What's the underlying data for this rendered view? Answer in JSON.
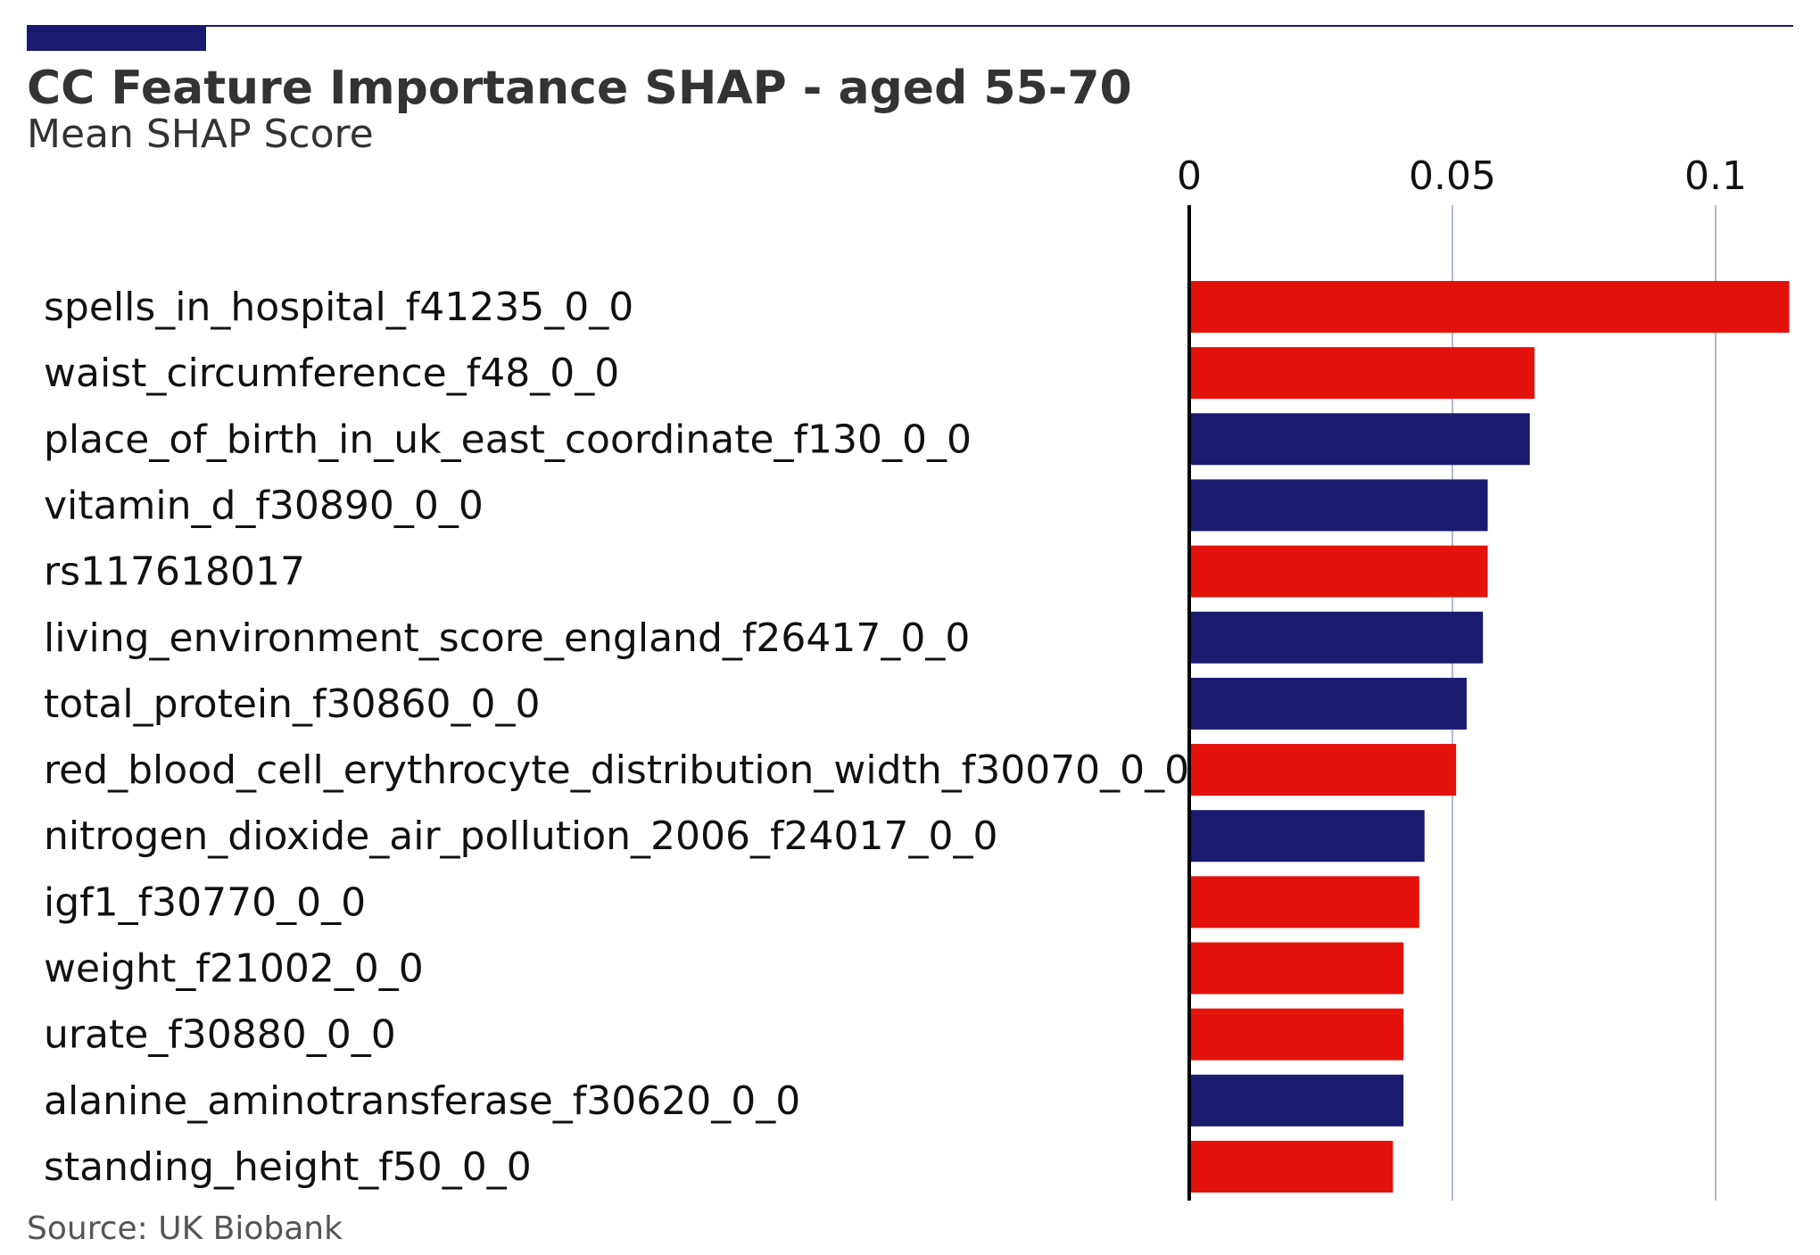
{
  "header": {
    "title": "CC Feature Importance SHAP - aged 55-70",
    "subtitle": "Mean SHAP Score"
  },
  "footer": {
    "source": "Source: UK Biobank"
  },
  "colors": {
    "accent": "#1a1a6e",
    "positive": "#e3120b",
    "negative": "#1a1a6e",
    "grid": "#b0bccb"
  },
  "chart_data": {
    "type": "bar",
    "orientation": "horizontal",
    "x_ticks": [
      "0",
      "0.05",
      "0.1"
    ],
    "x_tick_values": [
      0,
      0.05,
      0.1
    ],
    "xlim": [
      0,
      0.115
    ],
    "grid": true,
    "categories": [
      "spells_in_hospital_f41235_0_0",
      "waist_circumference_f48_0_0",
      "place_of_birth_in_uk_east_coordinate_f130_0_0",
      "vitamin_d_f30890_0_0",
      "rs117618017",
      "living_environment_score_england_f26417_0_0",
      "total_protein_f30860_0_0",
      "red_blood_cell_erythrocyte_distribution_width_f30070_0_0",
      "nitrogen_dioxide_air_pollution_2006_f24017_0_0",
      "igf1_f30770_0_0",
      "weight_f21002_0_0",
      "urate_f30880_0_0",
      "alanine_aminotransferase_f30620_0_0",
      "standing_height_f50_0_0"
    ],
    "values": [
      0.114,
      0.0656,
      0.0647,
      0.0567,
      0.0567,
      0.0558,
      0.0527,
      0.0507,
      0.0447,
      0.0437,
      0.0407,
      0.0407,
      0.0407,
      0.0387
    ],
    "bar_colors": [
      "#e3120b",
      "#e3120b",
      "#1a1a6e",
      "#1a1a6e",
      "#e3120b",
      "#1a1a6e",
      "#1a1a6e",
      "#e3120b",
      "#1a1a6e",
      "#e3120b",
      "#e3120b",
      "#e3120b",
      "#1a1a6e",
      "#e3120b"
    ]
  }
}
